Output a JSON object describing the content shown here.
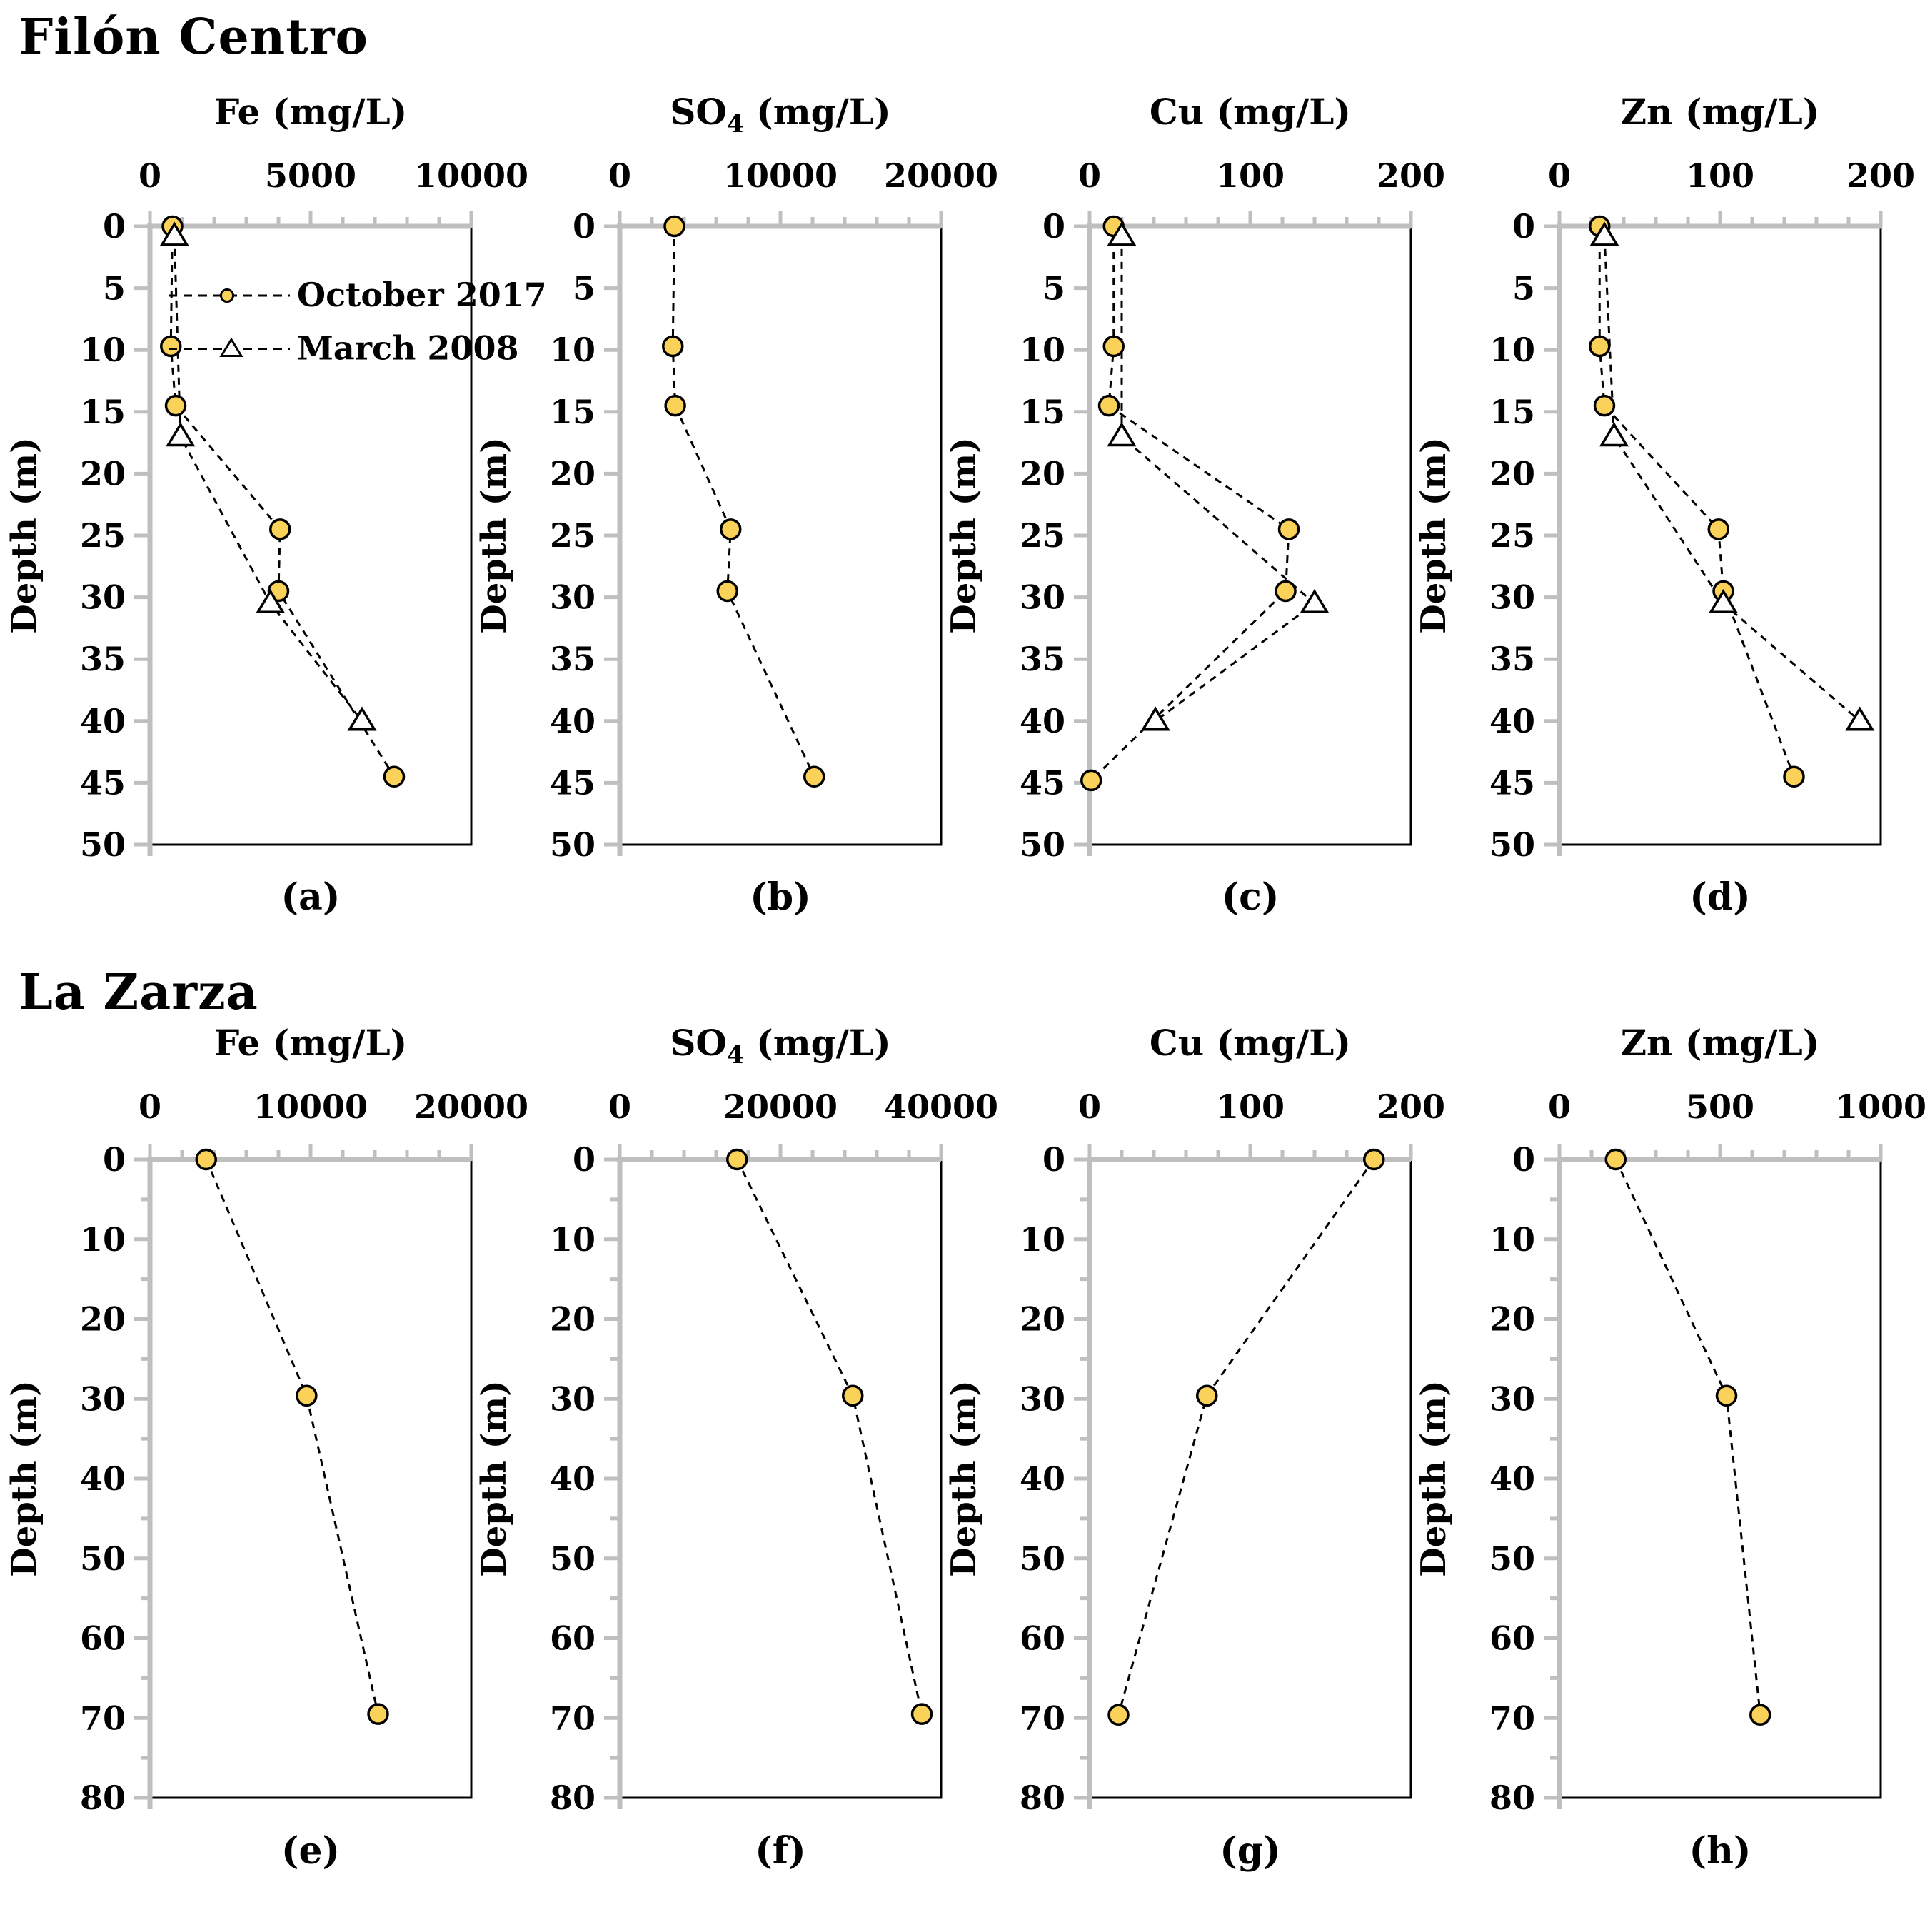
{
  "figure": {
    "sections": [
      {
        "title": "Filón Centro"
      },
      {
        "title": "La Zarza"
      }
    ]
  },
  "legend": {
    "items": [
      {
        "label": "October 2017",
        "marker": "circle"
      },
      {
        "label": "March 2008",
        "marker": "triangle"
      }
    ]
  },
  "colors": {
    "marker_fill": "#FBD259",
    "marker_stroke": "#000000",
    "axis_gray": "#BFBFBF",
    "line_black": "#000000",
    "text": "#000000",
    "background": "#FFFFFF"
  },
  "chart_data": [
    {
      "id": "a",
      "site": "Filón Centro",
      "type": "scatter",
      "caption": "(a)",
      "xlabel": "Fe (mg/L)",
      "xlim": [
        0,
        10000
      ],
      "xticks": [
        0,
        5000,
        10000
      ],
      "x_minor_step": 1000,
      "ylabel": "Depth (m)",
      "ylim": [
        0,
        50
      ],
      "ytick_step": 5,
      "y_minor_step": null,
      "legend": true,
      "series": [
        {
          "name": "October 2017",
          "marker": "circle",
          "points": [
            {
              "depth": 0,
              "value": 700
            },
            {
              "depth": 9.7,
              "value": 650
            },
            {
              "depth": 14.5,
              "value": 800
            },
            {
              "depth": 24.5,
              "value": 4050
            },
            {
              "depth": 29.5,
              "value": 4000
            },
            {
              "depth": 44.5,
              "value": 7600
            }
          ]
        },
        {
          "name": "March 2008",
          "marker": "triangle",
          "points": [
            {
              "depth": 0.8,
              "value": 760
            },
            {
              "depth": 17,
              "value": 950
            },
            {
              "depth": 30.5,
              "value": 3750
            },
            {
              "depth": 40,
              "value": 6600
            }
          ]
        }
      ]
    },
    {
      "id": "b",
      "site": "Filón Centro",
      "type": "scatter",
      "caption": "(b)",
      "xlabel": "SO₄ (mg/L)",
      "xlim": [
        0,
        20000
      ],
      "xticks": [
        0,
        10000,
        20000
      ],
      "x_minor_step": 2000,
      "ylabel": "Depth (m)",
      "ylim": [
        0,
        50
      ],
      "ytick_step": 5,
      "y_minor_step": null,
      "legend": false,
      "series": [
        {
          "name": "October 2017",
          "marker": "circle",
          "points": [
            {
              "depth": 0,
              "value": 3400
            },
            {
              "depth": 9.7,
              "value": 3300
            },
            {
              "depth": 14.5,
              "value": 3450
            },
            {
              "depth": 24.5,
              "value": 6900
            },
            {
              "depth": 29.5,
              "value": 6700
            },
            {
              "depth": 44.5,
              "value": 12100
            }
          ]
        }
      ]
    },
    {
      "id": "c",
      "site": "Filón Centro",
      "type": "scatter",
      "caption": "(c)",
      "xlabel": "Cu (mg/L)",
      "xlim": [
        0,
        200
      ],
      "xticks": [
        0,
        100,
        200
      ],
      "x_minor_step": 20,
      "ylabel": "Depth (m)",
      "ylim": [
        0,
        50
      ],
      "ytick_step": 5,
      "y_minor_step": null,
      "legend": false,
      "series": [
        {
          "name": "October 2017",
          "marker": "circle",
          "points": [
            {
              "depth": 0,
              "value": 15
            },
            {
              "depth": 9.7,
              "value": 15
            },
            {
              "depth": 14.5,
              "value": 12
            },
            {
              "depth": 24.5,
              "value": 124
            },
            {
              "depth": 29.5,
              "value": 122
            },
            {
              "depth": 44.8,
              "value": 1
            }
          ]
        },
        {
          "name": "March 2008",
          "marker": "triangle",
          "points": [
            {
              "depth": 0.8,
              "value": 20
            },
            {
              "depth": 17,
              "value": 20
            },
            {
              "depth": 30.5,
              "value": 140
            },
            {
              "depth": 40,
              "value": 41
            }
          ]
        }
      ]
    },
    {
      "id": "d",
      "site": "Filón Centro",
      "type": "scatter",
      "caption": "(d)",
      "xlabel": "Zn (mg/L)",
      "xlim": [
        0,
        200
      ],
      "xticks": [
        0,
        100,
        200
      ],
      "x_minor_step": 20,
      "ylabel": "Depth (m)",
      "ylim": [
        0,
        50
      ],
      "ytick_step": 5,
      "y_minor_step": null,
      "legend": false,
      "series": [
        {
          "name": "October 2017",
          "marker": "circle",
          "points": [
            {
              "depth": 0,
              "value": 25
            },
            {
              "depth": 9.7,
              "value": 25
            },
            {
              "depth": 14.5,
              "value": 28
            },
            {
              "depth": 24.5,
              "value": 99
            },
            {
              "depth": 29.5,
              "value": 102
            },
            {
              "depth": 44.5,
              "value": 146
            }
          ]
        },
        {
          "name": "March 2008",
          "marker": "triangle",
          "points": [
            {
              "depth": 0.8,
              "value": 28
            },
            {
              "depth": 17,
              "value": 34
            },
            {
              "depth": 30.5,
              "value": 102
            },
            {
              "depth": 40,
              "value": 187
            }
          ]
        }
      ]
    },
    {
      "id": "e",
      "site": "La Zarza",
      "type": "scatter",
      "caption": "(e)",
      "xlabel": "Fe (mg/L)",
      "xlim": [
        0,
        20000
      ],
      "xticks": [
        0,
        10000,
        20000
      ],
      "x_minor_step": 2000,
      "ylabel": "Depth (m)",
      "ylim": [
        0,
        80
      ],
      "ytick_step": 10,
      "y_minor_step": 5,
      "legend": false,
      "series": [
        {
          "name": "October 2017",
          "marker": "circle",
          "points": [
            {
              "depth": 0,
              "value": 3500
            },
            {
              "depth": 29.6,
              "value": 9750
            },
            {
              "depth": 69.5,
              "value": 14200
            }
          ]
        }
      ]
    },
    {
      "id": "f",
      "site": "La Zarza",
      "type": "scatter",
      "caption": "(f)",
      "xlabel": "SO₄ (mg/L)",
      "xlim": [
        0,
        40000
      ],
      "xticks": [
        0,
        20000,
        40000
      ],
      "x_minor_step": 4000,
      "ylabel": "Depth (m)",
      "ylim": [
        0,
        80
      ],
      "ytick_step": 10,
      "y_minor_step": 5,
      "legend": false,
      "series": [
        {
          "name": "October 2017",
          "marker": "circle",
          "points": [
            {
              "depth": 0,
              "value": 14600
            },
            {
              "depth": 29.6,
              "value": 29000
            },
            {
              "depth": 69.5,
              "value": 37600
            }
          ]
        }
      ]
    },
    {
      "id": "g",
      "site": "La Zarza",
      "type": "scatter",
      "caption": "(g)",
      "xlabel": "Cu (mg/L)",
      "xlim": [
        0,
        200
      ],
      "xticks": [
        0,
        100,
        200
      ],
      "x_minor_step": 20,
      "ylabel": "Depth (m)",
      "ylim": [
        0,
        80
      ],
      "ytick_step": 10,
      "y_minor_step": 5,
      "legend": false,
      "series": [
        {
          "name": "October 2017",
          "marker": "circle",
          "points": [
            {
              "depth": 0,
              "value": 177
            },
            {
              "depth": 29.6,
              "value": 73
            },
            {
              "depth": 69.6,
              "value": 18
            }
          ]
        }
      ]
    },
    {
      "id": "h",
      "site": "La Zarza",
      "type": "scatter",
      "caption": "(h)",
      "xlabel": "Zn (mg/L)",
      "xlim": [
        0,
        1000
      ],
      "xticks": [
        0,
        500,
        1000
      ],
      "x_minor_step": 100,
      "ylabel": "Depth (m)",
      "ylim": [
        0,
        80
      ],
      "ytick_step": 10,
      "y_minor_step": 5,
      "legend": false,
      "series": [
        {
          "name": "October 2017",
          "marker": "circle",
          "points": [
            {
              "depth": 0,
              "value": 175
            },
            {
              "depth": 29.6,
              "value": 520
            },
            {
              "depth": 69.6,
              "value": 625
            }
          ]
        }
      ]
    }
  ]
}
